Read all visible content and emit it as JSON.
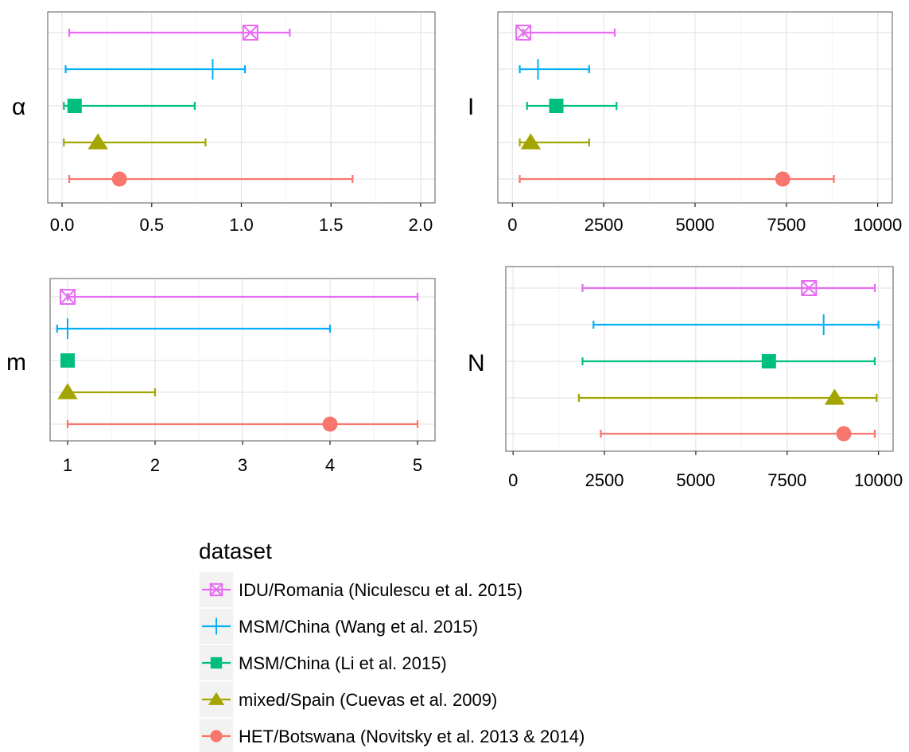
{
  "chart_data": [
    {
      "type": "errorbar",
      "facet": "α",
      "xlim": [
        -0.08,
        2.08
      ],
      "ticks": [
        0.0,
        0.5,
        1.0,
        1.5,
        2.0
      ],
      "tick_labels": [
        "0.0",
        "0.5",
        "1.0",
        "1.5",
        "2.0"
      ],
      "grid": true,
      "series": [
        {
          "name": "IDU/Romania (Niculescu et al. 2015)",
          "low": 0.04,
          "estimate": 1.05,
          "high": 1.27
        },
        {
          "name": "MSM/China (Wang et al. 2015)",
          "low": 0.02,
          "estimate": 0.84,
          "high": 1.02
        },
        {
          "name": "MSM/China (Li et al. 2015)",
          "low": 0.01,
          "estimate": 0.07,
          "high": 0.74
        },
        {
          "name": "mixed/Spain (Cuevas et al. 2009)",
          "low": 0.01,
          "estimate": 0.2,
          "high": 0.8
        },
        {
          "name": "HET/Botswana (Novitsky et al. 2013 & 2014)",
          "low": 0.04,
          "estimate": 0.32,
          "high": 1.62
        }
      ]
    },
    {
      "type": "errorbar",
      "facet": "I",
      "xlim": [
        -400,
        10400
      ],
      "ticks": [
        0,
        2500,
        5000,
        7500,
        10000
      ],
      "tick_labels": [
        "0",
        "2500",
        "5000",
        "7500",
        "10000"
      ],
      "grid": true,
      "series": [
        {
          "name": "IDU/Romania (Niculescu et al. 2015)",
          "low": 300,
          "estimate": 300,
          "high": 2800
        },
        {
          "name": "MSM/China (Wang et al. 2015)",
          "low": 200,
          "estimate": 700,
          "high": 2100
        },
        {
          "name": "MSM/China (Li et al. 2015)",
          "low": 400,
          "estimate": 1200,
          "high": 2850
        },
        {
          "name": "mixed/Spain (Cuevas et al. 2009)",
          "low": 200,
          "estimate": 500,
          "high": 2100
        },
        {
          "name": "HET/Botswana (Novitsky et al. 2013 & 2014)",
          "low": 200,
          "estimate": 7400,
          "high": 8800
        }
      ]
    },
    {
      "type": "errorbar",
      "facet": "m",
      "xlim": [
        0.8,
        5.2
      ],
      "ticks": [
        1,
        2,
        3,
        4,
        5
      ],
      "tick_labels": [
        "1",
        "2",
        "3",
        "4",
        "5"
      ],
      "grid": true,
      "series": [
        {
          "name": "IDU/Romania (Niculescu et al. 2015)",
          "low": 1,
          "estimate": 1,
          "high": 5
        },
        {
          "name": "MSM/China (Wang et al. 2015)",
          "low": 0.88,
          "estimate": 1,
          "high": 4
        },
        {
          "name": "MSM/China (Li et al. 2015)",
          "low": 1,
          "estimate": 1,
          "high": 1
        },
        {
          "name": "mixed/Spain (Cuevas et al. 2009)",
          "low": 1,
          "estimate": 1,
          "high": 2
        },
        {
          "name": "HET/Botswana (Novitsky et al. 2013 & 2014)",
          "low": 1,
          "estimate": 4,
          "high": 5
        }
      ]
    },
    {
      "type": "errorbar",
      "facet": "N",
      "xlim": [
        -200,
        10400
      ],
      "ticks": [
        0,
        2500,
        5000,
        7500,
        10000
      ],
      "tick_labels": [
        "0",
        "2500",
        "5000",
        "7500",
        "10000"
      ],
      "grid": true,
      "series": [
        {
          "name": "IDU/Romania (Niculescu et al. 2015)",
          "low": 1900,
          "estimate": 8100,
          "high": 9900
        },
        {
          "name": "MSM/China (Wang et al. 2015)",
          "low": 2200,
          "estimate": 8500,
          "high": 10000
        },
        {
          "name": "MSM/China (Li et al. 2015)",
          "low": 1900,
          "estimate": 7000,
          "high": 9900
        },
        {
          "name": "mixed/Spain (Cuevas et al. 2009)",
          "low": 1800,
          "estimate": 8800,
          "high": 9950
        },
        {
          "name": "HET/Botswana (Novitsky et al. 2013 & 2014)",
          "low": 2400,
          "estimate": 9050,
          "high": 9900
        }
      ]
    }
  ],
  "legend": {
    "title": "dataset",
    "position": "bottom",
    "items": [
      {
        "label": "IDU/Romania (Niculescu et al. 2015)",
        "color": "#E76BF3",
        "shape": "square-cross-icon"
      },
      {
        "label": "MSM/China (Wang et al. 2015)",
        "color": "#00B0F6",
        "shape": "plus-icon"
      },
      {
        "label": "MSM/China (Li et al. 2015)",
        "color": "#00BF7D",
        "shape": "filled-square-icon"
      },
      {
        "label": "mixed/Spain (Cuevas et al. 2009)",
        "color": "#A3A500",
        "shape": "filled-triangle-icon"
      },
      {
        "label": "HET/Botswana (Novitsky et al. 2013 & 2014)",
        "color": "#F8766D",
        "shape": "filled-circle-icon"
      }
    ]
  }
}
